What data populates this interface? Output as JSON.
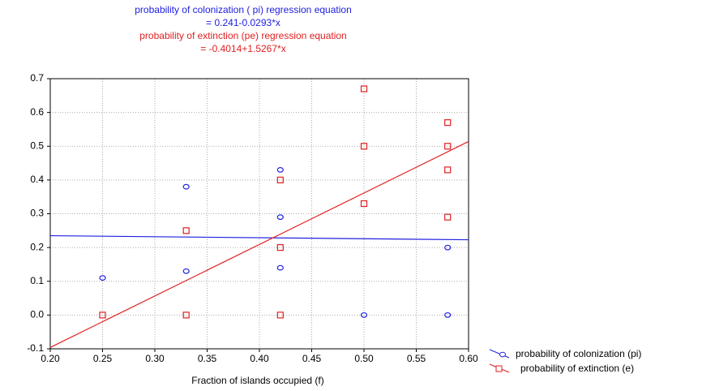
{
  "chart_data": {
    "type": "scatter",
    "annotations": [
      {
        "text": "probability of colonization ( pi) regression  equation",
        "color": "#2020e0"
      },
      {
        "text": "= 0.241-0.0293*x",
        "color": "#2020e0"
      },
      {
        "text": "probability of extinction (pe)  regression  equation",
        "color": "#e02020"
      },
      {
        "text": "= -0.4014+1.5267*x",
        "color": "#e02020"
      }
    ],
    "xlabel": "Fraction of islands occupied (f)",
    "xlim": [
      0.2,
      0.6
    ],
    "ylim": [
      -0.1,
      0.7
    ],
    "xticks": [
      {
        "value": 0.2,
        "label": "0.20"
      },
      {
        "value": 0.25,
        "label": "0.25"
      },
      {
        "value": 0.3,
        "label": "0.30"
      },
      {
        "value": 0.35,
        "label": "0.35"
      },
      {
        "value": 0.4,
        "label": "0.40"
      },
      {
        "value": 0.45,
        "label": "0.45"
      },
      {
        "value": 0.5,
        "label": "0.50"
      },
      {
        "value": 0.55,
        "label": "0.55"
      },
      {
        "value": 0.6,
        "label": "0.60"
      }
    ],
    "yticks": [
      -0.1,
      {
        "value": 0,
        "label": "0.0"
      },
      0.1,
      0.2,
      0.3,
      0.4,
      0.5,
      0.6,
      0.7
    ],
    "grid": true,
    "legend": "lower right",
    "series": [
      {
        "name": "probability of colonization (pi)",
        "color": "#2020e0",
        "marker": "circle",
        "x": [
          0.25,
          0.33,
          0.33,
          0.42,
          0.42,
          0.42,
          0.5,
          0.58,
          0.58
        ],
        "values": [
          0.11,
          0.38,
          0.13,
          0.43,
          0.29,
          0.14,
          0,
          0.2,
          0
        ],
        "fit": {
          "x": [
            0.2,
            0.6
          ],
          "values": [
            0.235,
            0.223
          ]
        }
      },
      {
        "name": "probability of  extinction (e)",
        "color": "#e02020",
        "marker": "square",
        "x": [
          0.25,
          0.33,
          0.33,
          0.42,
          0.42,
          0.42,
          0.5,
          0.5,
          0.5,
          0.58,
          0.58,
          0.58,
          0.58
        ],
        "values": [
          0,
          0.25,
          0,
          0.4,
          0.2,
          0,
          0.67,
          0.5,
          0.33,
          0.57,
          0.5,
          0.43,
          0.29
        ],
        "fit": {
          "x": [
            0.2,
            0.6
          ],
          "values": [
            -0.096,
            0.514
          ]
        }
      }
    ]
  }
}
